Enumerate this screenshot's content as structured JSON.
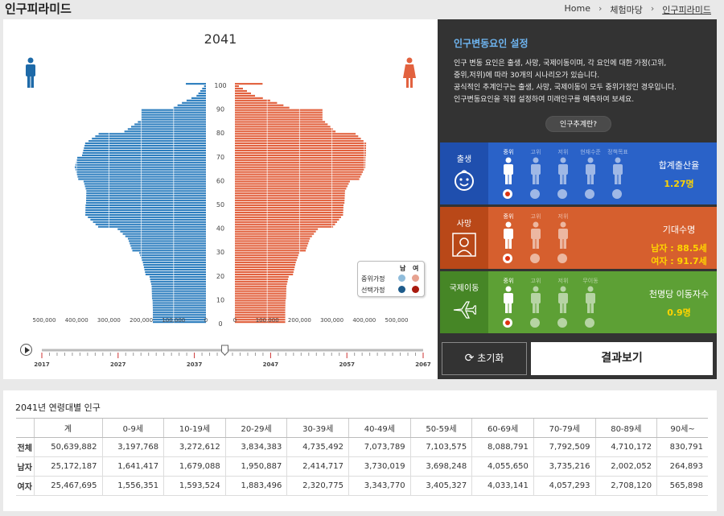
{
  "header": {
    "title": "인구피라미드",
    "breadcrumb": [
      "Home",
      "체험마당",
      "인구피라미드"
    ]
  },
  "pyramid": {
    "year": "2041",
    "age_ticks": [
      "0",
      "10",
      "20",
      "30",
      "40",
      "50",
      "60",
      "70",
      "80",
      "90",
      "100"
    ],
    "x_ticks_left": [
      "500,000",
      "400,000",
      "300,000",
      "200,000",
      "100,000",
      "0"
    ],
    "x_ticks_right": [
      "0",
      "100,000",
      "200,000",
      "300,000",
      "400,000",
      "500,000"
    ],
    "legend": {
      "male": "남",
      "female": "여",
      "row1": "중위가정",
      "row2": "선택가정"
    },
    "timeline": {
      "labels": [
        "2017",
        "2027",
        "2037",
        "2047",
        "2057",
        "2067"
      ],
      "current": "2041"
    },
    "colors": {
      "male": "#2f7fbf",
      "female": "#e2623f",
      "male_light": "#8fbcdb",
      "female_light": "#e7a290",
      "male_dark": "#1d5b8b",
      "female_dark": "#a81a0e"
    }
  },
  "chart_data": {
    "type": "bar",
    "title": "2041",
    "ylabel": "",
    "xlim": [
      -500000,
      500000
    ],
    "age_groups": [
      "0-9세",
      "10-19세",
      "20-29세",
      "30-39세",
      "40-49세",
      "50-59세",
      "60-69세",
      "70-79세",
      "80-89세",
      "90세~"
    ],
    "series": [
      {
        "name": "남",
        "values": [
          1641417,
          1679088,
          1950887,
          2414717,
          3730019,
          3698248,
          4055650,
          3735216,
          2002052,
          264893
        ]
      },
      {
        "name": "여",
        "values": [
          1556351,
          1593524,
          1883496,
          2320775,
          3343770,
          3405327,
          4033141,
          4057293,
          2708120,
          565898
        ]
      }
    ]
  },
  "settings": {
    "title": "인구변동요인 설정",
    "desc1": "인구 변동 요인은 출생, 사망, 국제이동이며, 각 요인에 대한 가정(고위,",
    "desc2": "중위,저위)에 따라 30개의 시나리오가 있습니다.",
    "desc3": "공식적인 추계인구는 출생, 사망, 국제이동이 모두 중위가정인 경우입니다.",
    "desc4": "인구변동요인을 직접 설정하여 미래인구를 예측하여 보세요.",
    "explain_button": "인구추계란?",
    "birth": {
      "label": "출생",
      "color": "#2a62c8",
      "options": [
        "중위",
        "고위",
        "저위",
        "현재수준",
        "정책목표"
      ],
      "result_title": "합계출산율",
      "result_value": "1.27명"
    },
    "death": {
      "label": "사망",
      "color": "#d65f2e",
      "options": [
        "중위",
        "고위",
        "저위"
      ],
      "result_title": "기대수명",
      "result_value_male": "남자 : 88.5세",
      "result_value_female": "여자 : 91.7세"
    },
    "migration": {
      "label": "국제이동",
      "color": "#5da035",
      "options": [
        "중위",
        "고위",
        "저위",
        "무이동"
      ],
      "result_title": "천명당 이동자수",
      "result_value": "0.9명"
    },
    "reset_button": "초기화",
    "result_button": "결과보기"
  },
  "table": {
    "title": "2041년 연령대별 인구",
    "headers": [
      "",
      "계",
      "0-9세",
      "10-19세",
      "20-29세",
      "30-39세",
      "40-49세",
      "50-59세",
      "60-69세",
      "70-79세",
      "80-89세",
      "90세~"
    ],
    "rows": [
      [
        "전체",
        "50,639,882",
        "3,197,768",
        "3,272,612",
        "3,834,383",
        "4,735,492",
        "7,073,789",
        "7,103,575",
        "8,088,791",
        "7,792,509",
        "4,710,172",
        "830,791"
      ],
      [
        "남자",
        "25,172,187",
        "1,641,417",
        "1,679,088",
        "1,950,887",
        "2,414,717",
        "3,730,019",
        "3,698,248",
        "4,055,650",
        "3,735,216",
        "2,002,052",
        "264,893"
      ],
      [
        "여자",
        "25,467,695",
        "1,556,351",
        "1,593,524",
        "1,883,496",
        "2,320,775",
        "3,343,770",
        "3,405,327",
        "4,033,141",
        "4,057,293",
        "2,708,120",
        "565,898"
      ]
    ]
  }
}
